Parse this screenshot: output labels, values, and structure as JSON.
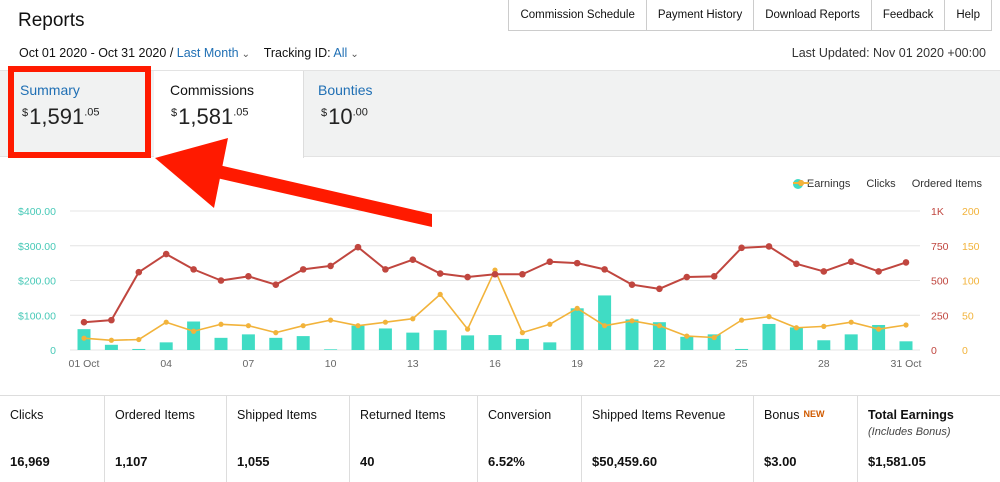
{
  "header": {
    "title": "Reports",
    "nav": [
      "Commission Schedule",
      "Payment History",
      "Download Reports",
      "Feedback",
      "Help"
    ],
    "date_range": "Oct 01 2020 - Oct 31 2020",
    "date_sep": "/",
    "period": "Last Month",
    "tracking_label": "Tracking ID:",
    "tracking_value": "All",
    "last_updated": "Last Updated: Nov 01 2020 +00:00"
  },
  "tabs": {
    "summary": {
      "label": "Summary",
      "currency": "$",
      "amount": "1,591",
      "cents": ".05"
    },
    "commissions": {
      "label": "Commissions",
      "currency": "$",
      "amount": "1,581",
      "cents": ".05"
    },
    "bounties": {
      "label": "Bounties",
      "currency": "$",
      "amount": "10",
      "cents": ".00"
    }
  },
  "annotation": {
    "box_color": "#ff1a00",
    "arrow_color": "#ff1a00"
  },
  "colors": {
    "earnings": "#40dcc4",
    "clicks": "#c0463f",
    "ordered": "#f2b33b",
    "left_axis": "#47c9b7",
    "link": "#1f6fb4"
  },
  "chart_data": {
    "type": "bar+line",
    "x_ticks": [
      "01 Oct",
      "04",
      "07",
      "10",
      "13",
      "16",
      "19",
      "22",
      "25",
      "28",
      "31 Oct"
    ],
    "days": [
      1,
      2,
      3,
      4,
      5,
      6,
      7,
      8,
      9,
      10,
      11,
      12,
      13,
      14,
      15,
      16,
      17,
      18,
      19,
      20,
      21,
      22,
      23,
      24,
      25,
      26,
      27,
      28,
      29,
      30,
      31
    ],
    "left_axis": {
      "ticks": [
        "0",
        "$100.00",
        "$200.00",
        "$300.00",
        "$400.00"
      ],
      "ylim": [
        0,
        400
      ]
    },
    "clicks_axis": {
      "ticks": [
        "0",
        "250",
        "500",
        "750",
        "1K"
      ],
      "ylim": [
        0,
        1000
      ]
    },
    "ordered_axis": {
      "ticks": [
        "0",
        "50",
        "100",
        "150",
        "200"
      ],
      "ylim": [
        0,
        200
      ]
    },
    "legend": [
      "Earnings",
      "Clicks",
      "Ordered Items"
    ],
    "series": [
      {
        "name": "Earnings",
        "type": "bar",
        "values": [
          60,
          15,
          3,
          22,
          82,
          35,
          45,
          35,
          40,
          2,
          70,
          62,
          50,
          57,
          42,
          43,
          32,
          22,
          120,
          157,
          88,
          80,
          38,
          45,
          3,
          75,
          65,
          28,
          45,
          72,
          25
        ]
      },
      {
        "name": "Clicks",
        "type": "line",
        "values": [
          200,
          215,
          560,
          690,
          580,
          500,
          530,
          470,
          580,
          605,
          740,
          580,
          650,
          550,
          525,
          545,
          545,
          635,
          625,
          580,
          470,
          440,
          525,
          530,
          735,
          745,
          620,
          565,
          635,
          565,
          630
        ]
      },
      {
        "name": "Ordered Items",
        "type": "line",
        "values": [
          17,
          14,
          15,
          40,
          27,
          37,
          35,
          25,
          35,
          43,
          35,
          40,
          45,
          80,
          30,
          115,
          25,
          37,
          60,
          35,
          42,
          35,
          20,
          18,
          43,
          48,
          32,
          34,
          40,
          30,
          36
        ]
      }
    ]
  },
  "stats": [
    {
      "label": "Clicks",
      "value": "16,969"
    },
    {
      "label": "Ordered Items",
      "value": "1,107"
    },
    {
      "label": "Shipped Items",
      "value": "1,055"
    },
    {
      "label": "Returned Items",
      "value": "40"
    },
    {
      "label": "Conversion",
      "value": "6.52%"
    },
    {
      "label": "Shipped Items Revenue",
      "value": "$50,459.60"
    },
    {
      "label": "Bonus",
      "badge": "NEW",
      "value": "$3.00"
    },
    {
      "label": "Total Earnings",
      "sub": "(Includes Bonus)",
      "value": "$1,581.05"
    }
  ]
}
